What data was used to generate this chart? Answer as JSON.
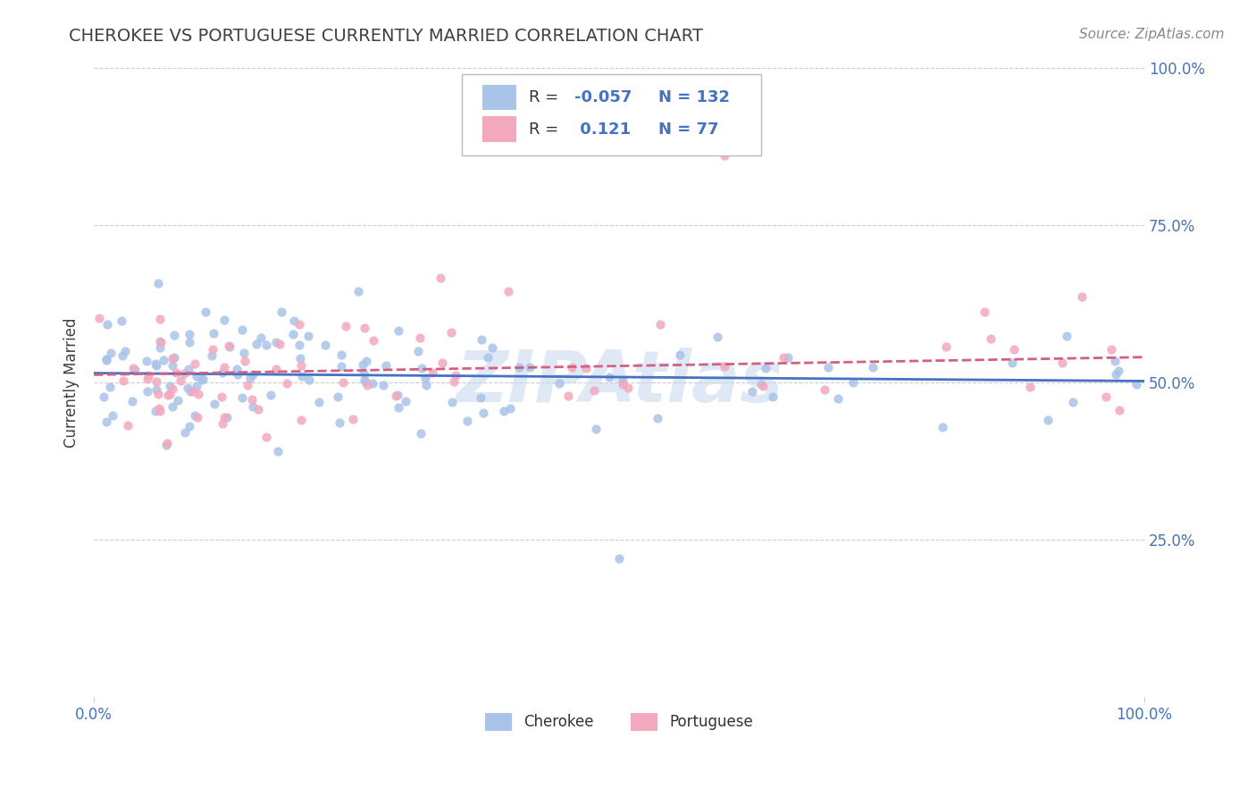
{
  "title": "CHEROKEE VS PORTUGUESE CURRENTLY MARRIED CORRELATION CHART",
  "source_text": "Source: ZipAtlas.com",
  "ylabel": "Currently Married",
  "xlim": [
    0.0,
    1.0
  ],
  "ylim": [
    0.0,
    1.0
  ],
  "ytick_positions": [
    0.25,
    0.5,
    0.75,
    1.0
  ],
  "cherokee_color": "#a8c4e8",
  "portuguese_color": "#f4a8be",
  "cherokee_line_color": "#4472c4",
  "portuguese_line_color": "#d45f80",
  "cherokee_R": -0.057,
  "cherokee_N": 132,
  "portuguese_R": 0.121,
  "portuguese_N": 77,
  "legend_R_color": "#4472c4",
  "title_color": "#404040",
  "axis_label_color": "#4472c4",
  "grid_color": "#cccccc",
  "background_color": "#ffffff",
  "title_fontsize": 14,
  "source_fontsize": 11,
  "tick_fontsize": 12,
  "ylabel_fontsize": 12,
  "legend_fontsize": 13
}
